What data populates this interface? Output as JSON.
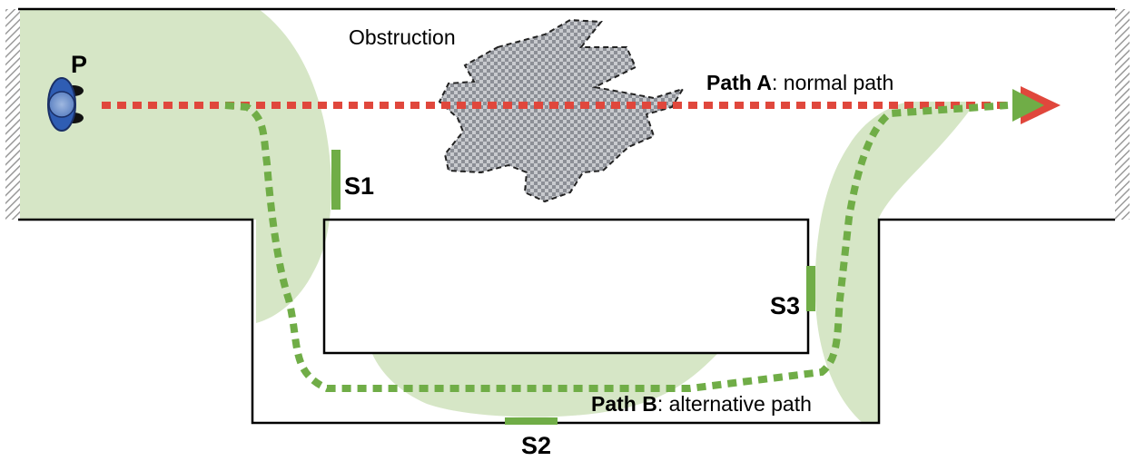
{
  "labels": {
    "person": "P",
    "obstruction": "Obstruction",
    "sensors": [
      "S1",
      "S2",
      "S3"
    ],
    "path_a": {
      "name": "Path A",
      "desc": ": normal path"
    },
    "path_b": {
      "name": "Path B",
      "desc": ": alternative path"
    }
  },
  "colors": {
    "coverage": "#d6e6c6",
    "sensor": "#70ad47",
    "path_a": "#e0473c",
    "path_b": "#70ad47",
    "person": "#2f5db3",
    "obstruction": "#8c8f96",
    "walls": "#000000"
  },
  "icons": {
    "person": "person-top-view-icon",
    "goal": "arrow-head-icon"
  }
}
